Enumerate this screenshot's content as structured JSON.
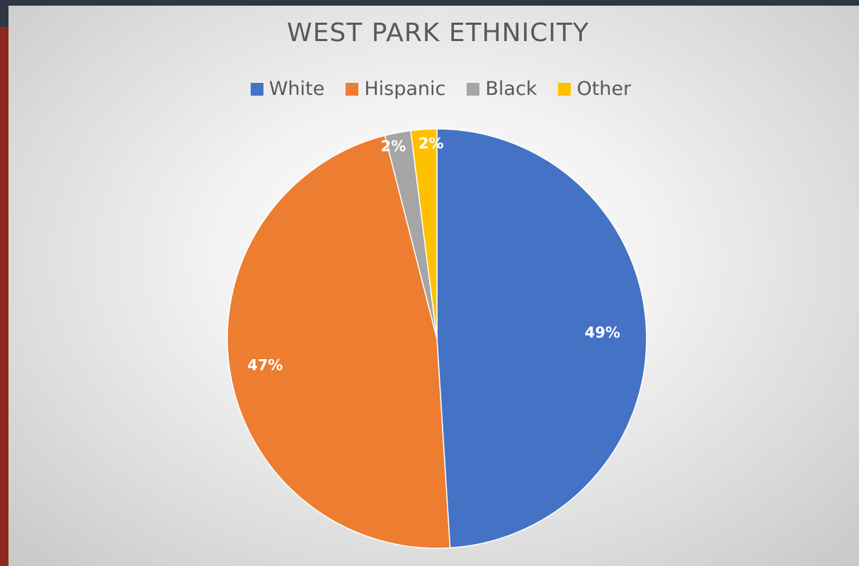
{
  "chart_data": {
    "type": "pie",
    "title": "WEST PARK ETHNICITY",
    "categories": [
      "White",
      "Hispanic",
      "Black",
      "Other"
    ],
    "values": [
      49,
      47,
      2,
      2
    ],
    "data_labels": [
      "49%",
      "47%",
      "2%",
      "2%"
    ],
    "colors": [
      "#4472c4",
      "#ed7d31",
      "#a5a5a5",
      "#ffc000"
    ],
    "legend_position": "top",
    "start_angle": "12 o'clock",
    "direction": "clockwise"
  }
}
